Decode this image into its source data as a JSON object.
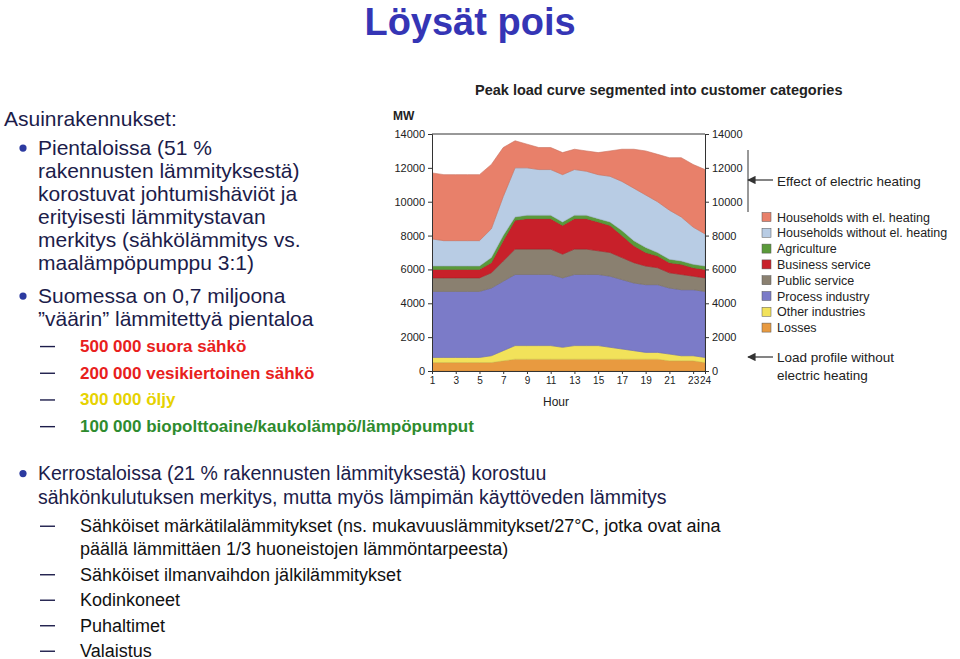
{
  "slide": {
    "title": "Löysät pois",
    "heading": "Asuinrakennukset:",
    "bullets": [
      {
        "lines": [
          "Pientaloissa (51 %",
          "rakennusten lämmityksestä)",
          "korostuvat johtumishäviöt ja",
          "erityisesti lämmitystavan",
          "merkitys (sähkölämmitys vs.",
          "maalämpöpumppu 3:1)"
        ],
        "items": []
      },
      {
        "lines": [
          "Suomessa on 0,7 miljoona",
          "”väärin” lämmitettyä pientaloa"
        ],
        "items": [
          {
            "lines": [
              "500 000 suora sähkö"
            ],
            "color": "#e8201c"
          },
          {
            "lines": [
              "200 000 vesikiertoinen sähkö"
            ],
            "color": "#e8201c"
          },
          {
            "lines": [
              "300 000 öljy"
            ],
            "color": "#e6d200"
          },
          {
            "lines": [
              "100 000 biopolttoaine/kaukolämpö/lämpöpumput"
            ],
            "color": "#2e8b2e"
          }
        ]
      },
      {
        "lines": [
          "Kerrostaloissa (21 % rakennusten lämmityksestä) korostuu",
          "sähkönkulutuksen merkitys, mutta myös lämpimän käyttöveden lämmitys"
        ],
        "items": [
          {
            "lines": [
              "Sähköiset märkätilalämmitykset (ns. mukavuuslämmitykset/27°C, jotka ovat aina",
              "päällä lämmittäen 1/3 huoneistojen lämmöntarpeesta)"
            ],
            "color": "#111111"
          },
          {
            "lines": [
              "Sähköiset ilmanvaihdon jälkilämmitykset"
            ],
            "color": "#111111"
          },
          {
            "lines": [
              "Kodinkoneet"
            ],
            "color": "#111111"
          },
          {
            "lines": [
              "Puhaltimet"
            ],
            "color": "#111111"
          },
          {
            "lines": [
              "Valaistus"
            ],
            "color": "#111111"
          }
        ]
      }
    ]
  },
  "chart_data": {
    "type": "area",
    "stacked": true,
    "title": "Peak load curve segmented into customer categories",
    "y_label": "MW",
    "x_label": "Hour",
    "x": [
      1,
      2,
      3,
      4,
      5,
      6,
      7,
      8,
      9,
      10,
      11,
      12,
      13,
      14,
      15,
      16,
      17,
      18,
      19,
      20,
      21,
      22,
      23,
      24
    ],
    "xlim": [
      1,
      24
    ],
    "xticks": [
      1,
      3,
      5,
      7,
      9,
      11,
      13,
      15,
      17,
      19,
      21,
      23,
      24
    ],
    "ylim": [
      0,
      14000
    ],
    "yticks": [
      0,
      2000,
      4000,
      6000,
      8000,
      10000,
      12000,
      14000
    ],
    "grid": false,
    "legend": "right",
    "annotations": [
      "Effect of electric heating",
      "Load profile without",
      "electric heating"
    ],
    "series": [
      {
        "name": "Households with el. heating",
        "color": "#e8806a",
        "values": [
          3900,
          3900,
          3900,
          3900,
          3900,
          3800,
          2900,
          1600,
          1400,
          1300,
          1300,
          1300,
          1200,
          1200,
          1300,
          1500,
          1900,
          2300,
          2600,
          2800,
          3100,
          3500,
          3700,
          3800
        ]
      },
      {
        "name": "Households without el. heating",
        "color": "#b8cce4",
        "values": [
          1600,
          1500,
          1500,
          1500,
          1500,
          1700,
          2300,
          2900,
          2800,
          2700,
          2700,
          2800,
          2700,
          2600,
          2600,
          2700,
          2900,
          3100,
          3100,
          3000,
          2900,
          2600,
          2200,
          1900
        ]
      },
      {
        "name": "Agriculture",
        "color": "#5a9a3a",
        "values": [
          200,
          200,
          200,
          200,
          200,
          300,
          300,
          200,
          200,
          200,
          200,
          200,
          200,
          200,
          200,
          200,
          300,
          300,
          300,
          200,
          200,
          200,
          200,
          200
        ]
      },
      {
        "name": "Business service",
        "color": "#c8202a",
        "values": [
          500,
          500,
          500,
          500,
          500,
          600,
          1200,
          1700,
          1800,
          1800,
          1800,
          1700,
          1800,
          1800,
          1700,
          1600,
          1300,
          1000,
          800,
          700,
          600,
          600,
          500,
          500
        ]
      },
      {
        "name": "Public service",
        "color": "#8a8070",
        "values": [
          800,
          800,
          800,
          800,
          800,
          900,
          1200,
          1500,
          1500,
          1500,
          1500,
          1400,
          1500,
          1500,
          1400,
          1400,
          1300,
          1200,
          1100,
          1000,
          900,
          900,
          800,
          800
        ]
      },
      {
        "name": "Process industry",
        "color": "#7b7bc8",
        "values": [
          3900,
          3900,
          3900,
          3900,
          3900,
          4000,
          4100,
          4200,
          4200,
          4200,
          4200,
          4100,
          4200,
          4200,
          4200,
          4200,
          4100,
          4000,
          4000,
          4000,
          3900,
          3900,
          3900,
          3900
        ]
      },
      {
        "name": "Other industries",
        "color": "#f2e25a",
        "values": [
          300,
          300,
          300,
          300,
          300,
          400,
          600,
          800,
          800,
          800,
          800,
          700,
          800,
          800,
          800,
          700,
          600,
          500,
          400,
          400,
          400,
          300,
          300,
          300
        ]
      },
      {
        "name": "Losses",
        "color": "#e89a40",
        "values": [
          500,
          500,
          500,
          500,
          500,
          500,
          600,
          700,
          700,
          700,
          700,
          700,
          700,
          700,
          700,
          700,
          700,
          700,
          700,
          700,
          600,
          600,
          600,
          500
        ]
      }
    ]
  }
}
